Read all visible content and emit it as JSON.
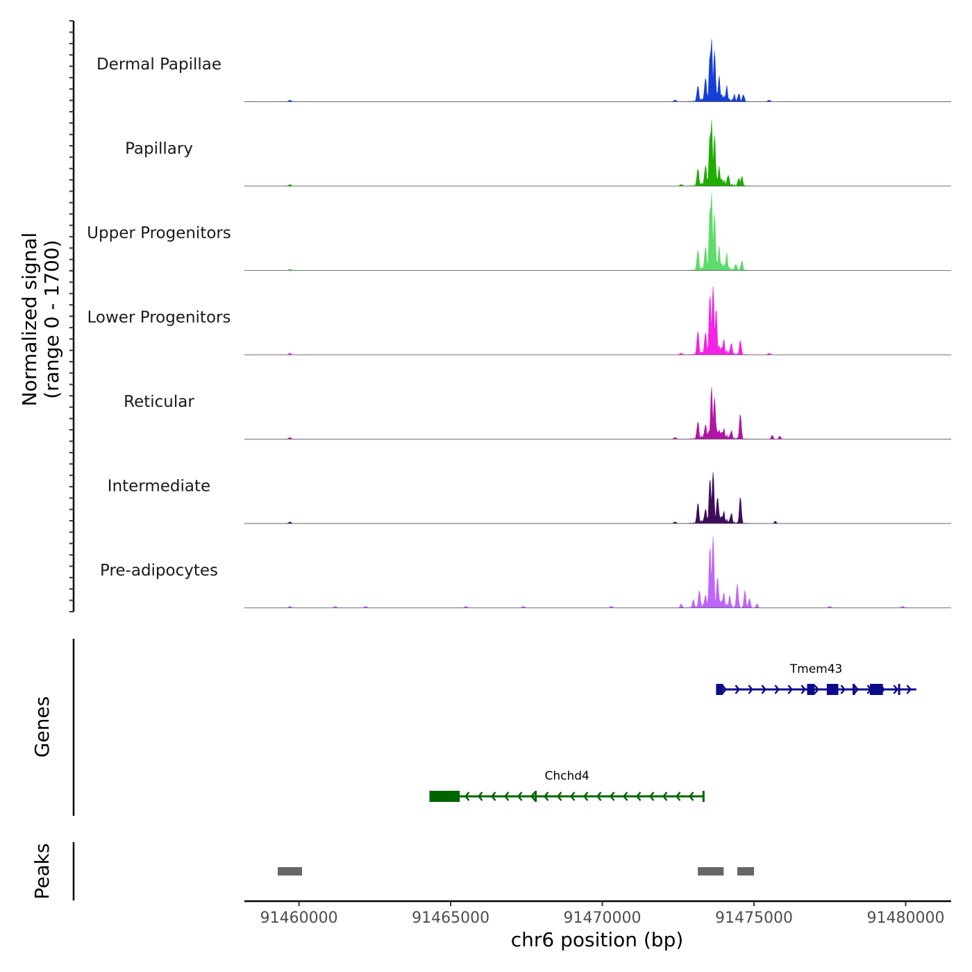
{
  "chart_data": {
    "type": "coverage",
    "chromosome": "chr6",
    "xlim": [
      91458200,
      91481500
    ],
    "x_ticks": [
      91460000,
      91465000,
      91470000,
      91475000,
      91480000
    ],
    "x_tick_labels": [
      "91460000",
      "91465000",
      "91470000",
      "91475000",
      "91480000"
    ],
    "xlabel": "chr6 position (bp)",
    "ylabel_line1": "Normalized signal",
    "ylabel_line2": "(range 0 - 1700)",
    "ylim": [
      0,
      1700
    ],
    "genes_label": "Genes",
    "peaks_label": "Peaks",
    "tracks": [
      {
        "name": "Dermal Papillae",
        "color": "#1540D6",
        "peaks": [
          [
            91473150,
            0.2
          ],
          [
            91473400,
            0.3
          ],
          [
            91473550,
            0.62
          ],
          [
            91473600,
            0.78
          ],
          [
            91473700,
            0.64
          ],
          [
            91473850,
            0.3
          ],
          [
            91474100,
            0.18
          ],
          [
            91474350,
            0.08
          ],
          [
            91474500,
            0.1
          ],
          [
            91474650,
            0.09
          ]
        ],
        "bumps": [
          91459700,
          91472400,
          91475500
        ]
      },
      {
        "name": "Papillary",
        "color": "#1FAD00",
        "peaks": [
          [
            91473150,
            0.22
          ],
          [
            91473400,
            0.26
          ],
          [
            91473550,
            0.68
          ],
          [
            91473600,
            0.82
          ],
          [
            91473700,
            0.64
          ],
          [
            91473850,
            0.22
          ],
          [
            91474150,
            0.14
          ],
          [
            91474500,
            0.1
          ],
          [
            91474600,
            0.12
          ]
        ],
        "bumps": [
          91459700,
          91472600
        ]
      },
      {
        "name": "Upper Progenitors",
        "color": "#5EDB6B",
        "peaks": [
          [
            91473150,
            0.26
          ],
          [
            91473400,
            0.3
          ],
          [
            91473550,
            0.82
          ],
          [
            91473600,
            0.98
          ],
          [
            91473700,
            0.72
          ],
          [
            91473850,
            0.28
          ],
          [
            91474100,
            0.2
          ],
          [
            91474400,
            0.08
          ],
          [
            91474600,
            0.12
          ]
        ],
        "bumps": [
          91459700
        ]
      },
      {
        "name": "Lower Progenitors",
        "color": "#F522E6",
        "peaks": [
          [
            91473150,
            0.3
          ],
          [
            91473400,
            0.28
          ],
          [
            91473550,
            0.78
          ],
          [
            91473650,
            0.88
          ],
          [
            91473750,
            0.58
          ],
          [
            91474000,
            0.18
          ],
          [
            91474250,
            0.14
          ],
          [
            91474550,
            0.18
          ]
        ],
        "bumps": [
          91459700,
          91472600,
          91475500
        ]
      },
      {
        "name": "Reticular",
        "color": "#B316A6",
        "peaks": [
          [
            91473150,
            0.22
          ],
          [
            91473400,
            0.18
          ],
          [
            91473600,
            0.64
          ],
          [
            91473700,
            0.52
          ],
          [
            91474000,
            0.12
          ],
          [
            91474250,
            0.1
          ],
          [
            91474550,
            0.32
          ],
          [
            91475600,
            0.05
          ],
          [
            91475850,
            0.04
          ]
        ],
        "bumps": [
          91459700,
          91472400
        ]
      },
      {
        "name": "Intermediate",
        "color": "#3D0D5C",
        "peaks": [
          [
            91473150,
            0.26
          ],
          [
            91473400,
            0.18
          ],
          [
            91473550,
            0.58
          ],
          [
            91473650,
            0.66
          ],
          [
            91473800,
            0.34
          ],
          [
            91474000,
            0.14
          ],
          [
            91474250,
            0.12
          ],
          [
            91474550,
            0.34
          ],
          [
            91475700,
            0.03
          ]
        ],
        "bumps": [
          91459700,
          91472400
        ]
      },
      {
        "name": "Pre-adipocytes",
        "color": "#BF66FA",
        "peaks": [
          [
            91472600,
            0.05
          ],
          [
            91473000,
            0.1
          ],
          [
            91473200,
            0.22
          ],
          [
            91473400,
            0.16
          ],
          [
            91473550,
            0.8
          ],
          [
            91473650,
            0.92
          ],
          [
            91473800,
            0.4
          ],
          [
            91474000,
            0.18
          ],
          [
            91474200,
            0.14
          ],
          [
            91474450,
            0.3
          ],
          [
            91474700,
            0.22
          ],
          [
            91474850,
            0.12
          ],
          [
            91475100,
            0.05
          ]
        ],
        "bumps": [
          91459700,
          91461200,
          91462200,
          91465500,
          91467400,
          91470300,
          91477500,
          91479900
        ]
      }
    ],
    "genes": [
      {
        "name": "Tmem43",
        "color": "#0A0A8A",
        "strand": "+",
        "start": 91473750,
        "end": 91480350,
        "exons": [
          [
            91473750,
            91473980
          ],
          [
            91476750,
            91477000
          ],
          [
            91477400,
            91477780
          ],
          [
            91478250,
            91478330
          ],
          [
            91478820,
            91479250
          ],
          [
            91479750,
            91479800
          ]
        ]
      },
      {
        "name": "Chchd4",
        "color": "#006400",
        "strand": "-",
        "start": 91464300,
        "end": 91473370,
        "exons": [
          [
            91464300,
            91465300
          ],
          [
            91467770,
            91467830
          ],
          [
            91473300,
            91473370
          ]
        ]
      }
    ],
    "peaks": [
      [
        91459300,
        91460100
      ],
      [
        91473150,
        91474000
      ],
      [
        91474450,
        91475000
      ]
    ]
  }
}
